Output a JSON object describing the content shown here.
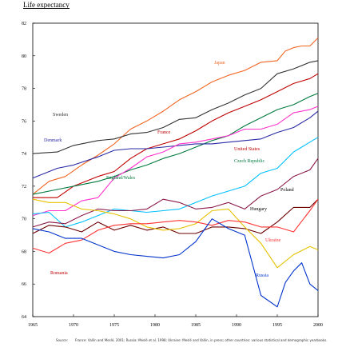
{
  "chart_data": {
    "type": "line",
    "title": "Life expectancy",
    "xlim": [
      1965,
      2000
    ],
    "ylim": [
      64,
      82
    ],
    "x_ticks": [
      1965,
      1970,
      1975,
      1980,
      1985,
      1990,
      1995,
      2000
    ],
    "y_ticks": [
      64,
      66,
      68,
      70,
      72,
      74,
      76,
      78,
      80,
      82
    ],
    "series": [
      {
        "name": "Japan",
        "color": "#f26522",
        "x": [
          1965,
          1967,
          1969,
          1971,
          1973,
          1975,
          1977,
          1979,
          1981,
          1983,
          1985,
          1987,
          1989,
          1991,
          1993,
          1995,
          1996,
          1997,
          1998,
          1999,
          2000
        ],
        "y": [
          71.5,
          72.3,
          72.6,
          73.3,
          73.9,
          74.6,
          75.5,
          76.0,
          76.6,
          77.3,
          77.8,
          78.4,
          78.8,
          79.1,
          79.6,
          79.7,
          80.3,
          80.5,
          80.6,
          80.6,
          81.1
        ]
      },
      {
        "name": "France",
        "color": "#c00000",
        "x": [
          1965,
          1968,
          1970,
          1973,
          1975,
          1977,
          1979,
          1981,
          1983,
          1985,
          1987,
          1989,
          1991,
          1993,
          1995,
          1997,
          1999,
          2000
        ],
        "y": [
          71.3,
          71.3,
          72.0,
          72.6,
          72.9,
          73.7,
          74.3,
          74.6,
          74.9,
          75.4,
          76.0,
          76.5,
          76.9,
          77.3,
          77.8,
          78.3,
          78.6,
          78.9
        ]
      },
      {
        "name": "Sweden",
        "color": "#333333",
        "x": [
          1965,
          1968,
          1970,
          1973,
          1975,
          1977,
          1979,
          1981,
          1983,
          1985,
          1987,
          1989,
          1991,
          1993,
          1995,
          1997,
          1999,
          2000
        ],
        "y": [
          74.0,
          74.1,
          74.5,
          74.8,
          74.9,
          75.2,
          75.3,
          75.6,
          76.1,
          76.2,
          76.7,
          77.1,
          77.6,
          78.0,
          78.9,
          79.2,
          79.6,
          79.7
        ]
      },
      {
        "name": "England/Wales",
        "color": "#007a3d",
        "x": [
          1965,
          1968,
          1970,
          1973,
          1975,
          1977,
          1979,
          1981,
          1983,
          1985,
          1987,
          1989,
          1991,
          1993,
          1995,
          1997,
          1999,
          2000
        ],
        "y": [
          71.5,
          71.8,
          72.0,
          72.3,
          72.6,
          73.0,
          73.3,
          73.7,
          74.0,
          74.4,
          74.8,
          75.1,
          75.7,
          76.2,
          76.7,
          77.0,
          77.5,
          77.7
        ]
      },
      {
        "name": "Denmark",
        "color": "#2a2aa5",
        "x": [
          1965,
          1968,
          1970,
          1973,
          1975,
          1977,
          1979,
          1981,
          1983,
          1985,
          1987,
          1989,
          1991,
          1993,
          1995,
          1997,
          1999,
          2000
        ],
        "y": [
          72.5,
          73.1,
          73.3,
          73.8,
          74.2,
          74.3,
          74.3,
          74.4,
          74.5,
          74.6,
          74.6,
          74.7,
          74.8,
          74.9,
          75.3,
          75.6,
          76.2,
          76.6
        ]
      },
      {
        "name": "United States",
        "color": "#ff33cc",
        "x": [
          1965,
          1967,
          1969,
          1971,
          1973,
          1975,
          1977,
          1979,
          1981,
          1983,
          1985,
          1987,
          1989,
          1991,
          1993,
          1995,
          1997,
          1999,
          2000
        ],
        "y": [
          70.2,
          70.5,
          70.5,
          71.1,
          71.3,
          72.5,
          73.1,
          73.8,
          74.1,
          74.6,
          74.7,
          74.9,
          75.1,
          75.5,
          75.5,
          75.8,
          76.5,
          76.7,
          76.9
        ]
      },
      {
        "name": "Czech Republic",
        "color": "#00c0ff",
        "x": [
          1965,
          1967,
          1969,
          1971,
          1973,
          1975,
          1977,
          1979,
          1981,
          1983,
          1985,
          1987,
          1989,
          1991,
          1993,
          1995,
          1997,
          1999,
          2000
        ],
        "y": [
          70.3,
          70.4,
          69.5,
          69.8,
          70.2,
          70.6,
          70.5,
          70.4,
          70.5,
          70.6,
          71.0,
          71.4,
          71.7,
          72.0,
          72.8,
          73.1,
          74.1,
          74.7,
          75.0
        ]
      },
      {
        "name": "Poland",
        "color": "#8b1a4a",
        "x": [
          1965,
          1967,
          1969,
          1971,
          1973,
          1975,
          1977,
          1979,
          1981,
          1983,
          1985,
          1987,
          1989,
          1991,
          1993,
          1995,
          1997,
          1999,
          2000
        ],
        "y": [
          69.5,
          69.8,
          69.7,
          70.2,
          70.6,
          70.5,
          70.5,
          70.6,
          71.2,
          71.0,
          70.6,
          70.7,
          71.0,
          70.6,
          71.4,
          71.8,
          72.6,
          73.0,
          73.7
        ]
      },
      {
        "name": "Hungary",
        "color": "#6d0000",
        "x": [
          1965,
          1967,
          1969,
          1971,
          1973,
          1975,
          1977,
          1979,
          1981,
          1983,
          1985,
          1987,
          1989,
          1991,
          1993,
          1995,
          1997,
          1999,
          2000
        ],
        "y": [
          69.1,
          69.6,
          69.5,
          69.2,
          69.8,
          69.3,
          69.6,
          69.3,
          69.5,
          69.1,
          69.1,
          69.5,
          69.5,
          69.4,
          69.1,
          69.8,
          70.7,
          70.7,
          71.2
        ]
      },
      {
        "name": "Ukraine",
        "color": "#e6c200",
        "x": [
          1965,
          1967,
          1969,
          1971,
          1973,
          1975,
          1977,
          1979,
          1981,
          1983,
          1985,
          1987,
          1989,
          1991,
          1993,
          1995,
          1997,
          1999,
          2000
        ],
        "y": [
          71.2,
          71.0,
          71.0,
          70.6,
          70.5,
          70.3,
          70.0,
          69.5,
          69.3,
          69.4,
          69.7,
          70.5,
          70.6,
          69.5,
          68.5,
          67.0,
          67.8,
          68.3,
          68.1
        ]
      },
      {
        "name": "Romania",
        "color": "#ff3333",
        "x": [
          1965,
          1967,
          1969,
          1971,
          1973,
          1975,
          1977,
          1979,
          1981,
          1983,
          1985,
          1987,
          1989,
          1991,
          1993,
          1995,
          1997,
          1999,
          2000
        ],
        "y": [
          68.2,
          67.9,
          68.5,
          68.7,
          69.3,
          69.6,
          69.7,
          69.7,
          69.8,
          69.9,
          69.8,
          69.6,
          69.9,
          69.8,
          69.5,
          69.5,
          69.2,
          70.5,
          71.2
        ]
      },
      {
        "name": "Russia",
        "color": "#0033cc",
        "x": [
          1965,
          1967,
          1969,
          1971,
          1973,
          1975,
          1977,
          1979,
          1981,
          1983,
          1985,
          1987,
          1989,
          1991,
          1993,
          1995,
          1996,
          1997,
          1998,
          1999,
          2000
        ],
        "y": [
          69.4,
          69.2,
          68.8,
          68.8,
          68.4,
          68.0,
          67.8,
          67.7,
          67.6,
          67.8,
          68.6,
          70.0,
          69.4,
          69.0,
          65.3,
          64.6,
          66.1,
          66.8,
          67.3,
          66.0,
          65.6
        ]
      }
    ],
    "series_labels": {
      "Japan": "Japan",
      "France": "France",
      "Sweden": "Sweden",
      "England/Wales": "England/Wales",
      "Denmark": "Denmark",
      "United States": "United States",
      "Czech Republic": "Czech Republic",
      "Poland": "Poland",
      "Hungary": "Hungary",
      "Ukraine": "Ukraine",
      "Romania": "Romania",
      "Russia": "Russia"
    },
    "grid": false,
    "legend": "inline labels"
  },
  "source": {
    "label": "Source:",
    "text": "France: Vallin and Meslé, 2001; Russia: Meslé et al. 1998; Ukraine: Meslé and Vallin, in press; other countries: various statistical and demographic yearbooks."
  },
  "colors": {
    "axis": "#000000",
    "background": "#ffffff"
  }
}
